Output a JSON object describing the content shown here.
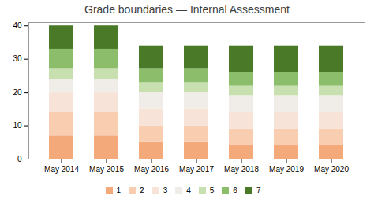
{
  "chart_data": {
    "type": "bar",
    "stacked": true,
    "title": "Grade boundaries — Internal Assessment",
    "categories": [
      "May 2014",
      "May 2015",
      "May 2016",
      "May 2017",
      "May 2018",
      "May 2019",
      "May 2020"
    ],
    "series": [
      {
        "name": "1",
        "color": "#F4A97A",
        "values": [
          7,
          7,
          5,
          5,
          4,
          4,
          4
        ]
      },
      {
        "name": "2",
        "color": "#F9CDB0",
        "values": [
          7,
          7,
          5,
          5,
          5,
          5,
          5
        ]
      },
      {
        "name": "3",
        "color": "#F7E3D8",
        "values": [
          6,
          6,
          5,
          5,
          5,
          5,
          5
        ]
      },
      {
        "name": "4",
        "color": "#F0EDE8",
        "values": [
          4,
          4,
          5,
          5,
          5,
          5,
          5
        ]
      },
      {
        "name": "5",
        "color": "#C8E0B0",
        "values": [
          3,
          3,
          3,
          3,
          3,
          3,
          3
        ]
      },
      {
        "name": "6",
        "color": "#8BBD6A",
        "values": [
          6,
          6,
          4,
          4,
          4,
          4,
          4
        ]
      },
      {
        "name": "7",
        "color": "#4A7A28",
        "values": [
          7,
          7,
          7,
          7,
          8,
          8,
          8
        ]
      }
    ],
    "ylim": [
      0,
      41
    ],
    "yticks": [
      0,
      10,
      20,
      30,
      40
    ],
    "grid": false,
    "legend": "bottom"
  }
}
